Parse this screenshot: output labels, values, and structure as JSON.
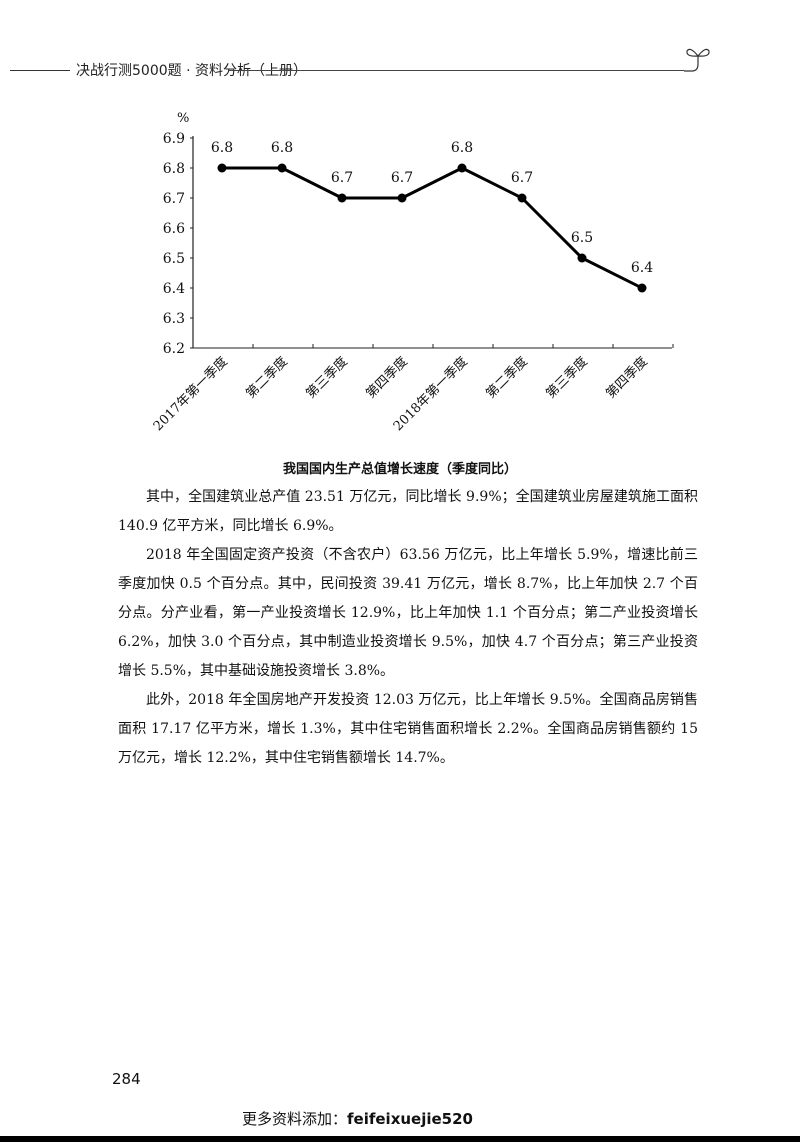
{
  "header": {
    "title": "决战行测5000题 · 资料分析（上册）",
    "icon": "sprout-icon"
  },
  "chart_data": {
    "type": "line",
    "title": "我国国内生产总值增长速度（季度同比）",
    "xlabel": "",
    "ylabel": "%",
    "ylim": [
      6.2,
      6.9
    ],
    "yticks": [
      6.2,
      6.3,
      6.4,
      6.5,
      6.6,
      6.7,
      6.8,
      6.9
    ],
    "categories": [
      "2017年第一季度",
      "第二季度",
      "第三季度",
      "第四季度",
      "2018年第一季度",
      "第二季度",
      "第三季度",
      "第四季度"
    ],
    "values": [
      6.8,
      6.8,
      6.7,
      6.7,
      6.8,
      6.7,
      6.5,
      6.4
    ],
    "data_labels": [
      "6.8",
      "6.8",
      "6.7",
      "6.7",
      "6.8",
      "6.7",
      "6.5",
      "6.4"
    ],
    "grid": false,
    "legend": null,
    "marker": "filled-circle",
    "line_color": "#000000"
  },
  "caption": "我国国内生产总值增长速度（季度同比）",
  "paragraphs": [
    "其中，全国建筑业总产值 23.51 万亿元，同比增长 9.9%；全国建筑业房屋建筑施工面积 140.9 亿平方米，同比增长 6.9%。",
    "2018 年全国固定资产投资（不含农户）63.56 万亿元，比上年增长 5.9%，增速比前三季度加快 0.5 个百分点。其中，民间投资 39.41 万亿元，增长 8.7%，比上年加快 2.7 个百分点。分产业看，第一产业投资增长 12.9%，比上年加快 1.1 个百分点；第二产业投资增长 6.2%，加快 3.0 个百分点，其中制造业投资增长 9.5%，加快 4.7 个百分点；第三产业投资增长 5.5%，其中基础设施投资增长 3.8%。",
    "此外，2018 年全国房地产开发投资 12.03 万亿元，比上年增长 9.5%。全国商品房销售面积 17.17 亿平方米，增长 1.3%，其中住宅销售面积增长 2.2%。全国商品房销售额约 15 万亿元，增长 12.2%，其中住宅销售额增长 14.7%。"
  ],
  "page_number": "284",
  "footer": {
    "prefix": "更多资料添加：",
    "id": "feifeixuejie520"
  }
}
